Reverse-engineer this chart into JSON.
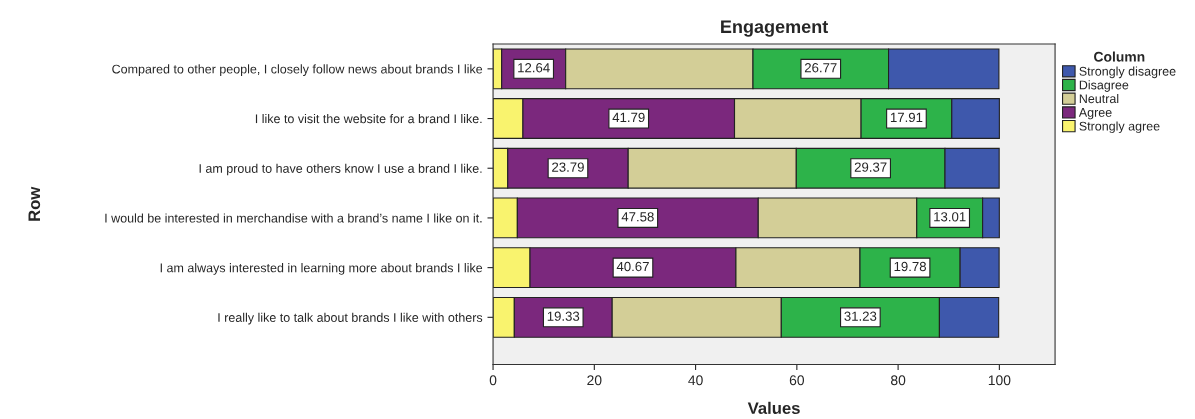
{
  "chart_data": {
    "type": "bar",
    "orientation": "horizontal",
    "stacked": true,
    "title": "Engagement",
    "xlabel": "Values",
    "ylabel": "Row",
    "legend_title": "Column",
    "legend": "right",
    "grid": false,
    "categories": [
      "Compared to other people, I closely follow news about brands I like",
      "I like to visit the website for a brand I like.",
      "I am proud to have others know I use a brand I like.",
      "I would be interested in merchandise with a brand’s name I like on it.",
      "I am always interested in learning more about brands I like",
      "I really like to talk about brands I like with others"
    ],
    "xlim": [
      0,
      111
    ],
    "xticks": [
      0,
      20,
      40,
      60,
      80,
      100
    ],
    "series": [
      {
        "name": "Strongly agree",
        "color": "#f9f36e",
        "values": [
          1.7,
          5.9,
          2.9,
          4.8,
          7.3,
          4.2
        ]
      },
      {
        "name": "Agree",
        "color": "#7b287d",
        "values": [
          12.64,
          41.79,
          23.79,
          47.58,
          40.67,
          19.33
        ],
        "value_labels": [
          "12.64",
          "41.79",
          "23.79",
          "47.58",
          "40.67",
          "19.33"
        ]
      },
      {
        "name": "Neutral",
        "color": "#d3ce97",
        "values": [
          37.0,
          25.0,
          33.2,
          31.3,
          24.5,
          33.4
        ]
      },
      {
        "name": "Disagree",
        "color": "#2db34a",
        "values": [
          26.77,
          17.91,
          29.37,
          13.01,
          19.78,
          31.23
        ],
        "value_labels": [
          "26.77",
          "17.91",
          "29.37",
          "13.01",
          "19.78",
          "31.23"
        ]
      },
      {
        "name": "Strongly disagree",
        "color": "#3e58ac",
        "values": [
          21.8,
          9.4,
          10.7,
          3.3,
          7.7,
          11.7
        ]
      }
    ]
  }
}
